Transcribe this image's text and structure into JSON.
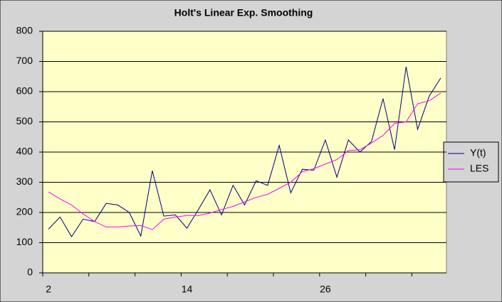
{
  "chart_data": {
    "type": "line",
    "title": "Holt's Linear Exp. Smoothing",
    "categories": [
      "2",
      null,
      null,
      null,
      null,
      null,
      null,
      null,
      null,
      null,
      null,
      null,
      "14",
      null,
      null,
      null,
      null,
      null,
      null,
      null,
      null,
      null,
      null,
      null,
      "26",
      null,
      null,
      null,
      null,
      null,
      null,
      null,
      null,
      null,
      null
    ],
    "series": [
      {
        "name": "Y(t)",
        "color": "#000080",
        "values": [
          145,
          185,
          120,
          178,
          170,
          230,
          225,
          200,
          122,
          338,
          188,
          192,
          148,
          210,
          275,
          192,
          290,
          225,
          305,
          290,
          422,
          265,
          343,
          340,
          440,
          317,
          440,
          400,
          435,
          577,
          408,
          682,
          475,
          585,
          645
        ]
      },
      {
        "name": "LES",
        "color": "#ff00ff",
        "values": [
          268,
          245,
          225,
          195,
          170,
          152,
          152,
          155,
          157,
          143,
          178,
          185,
          190,
          190,
          198,
          210,
          220,
          235,
          250,
          260,
          280,
          300,
          335,
          345,
          360,
          375,
          405,
          408,
          430,
          455,
          495,
          500,
          560,
          570,
          595
        ]
      }
    ],
    "ylim": [
      0,
      800
    ],
    "yticks": [
      0,
      100,
      200,
      300,
      400,
      500,
      600,
      700,
      800
    ],
    "grid": true,
    "legend": "right"
  }
}
